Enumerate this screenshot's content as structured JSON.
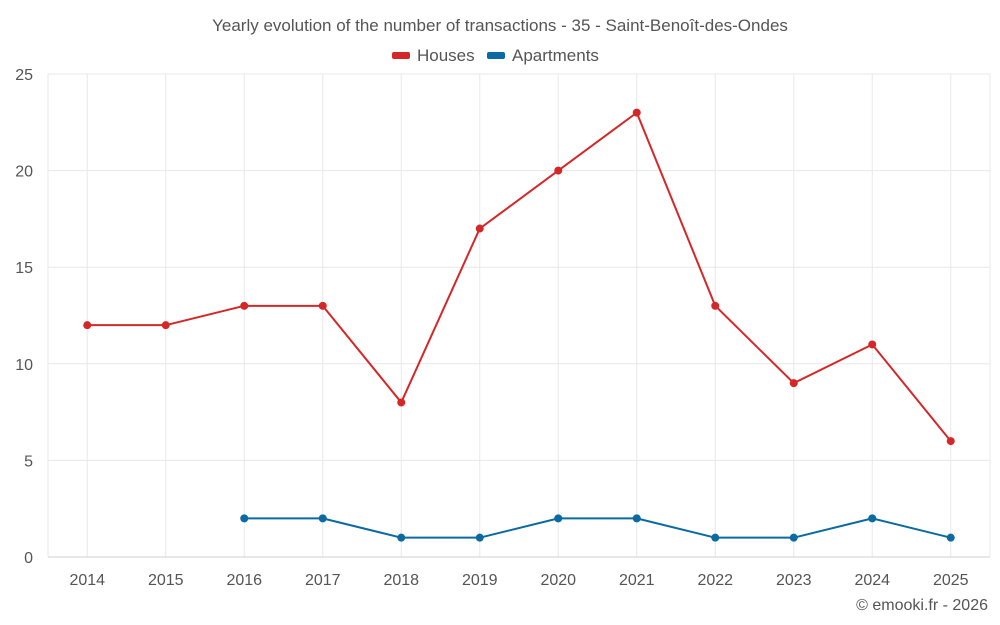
{
  "chart_data": {
    "type": "line",
    "title": "Yearly evolution of the number of transactions - 35 - Saint-Benoît-des-Ondes",
    "categories": [
      "2014",
      "2015",
      "2016",
      "2017",
      "2018",
      "2019",
      "2020",
      "2021",
      "2022",
      "2023",
      "2024",
      "2025"
    ],
    "ylim": [
      0,
      25
    ],
    "yticks": [
      0,
      5,
      10,
      15,
      20,
      25
    ],
    "grid": true,
    "legend_position": "top-center",
    "series": [
      {
        "name": "Houses",
        "color": "#d62728",
        "values": [
          12,
          12,
          13,
          13,
          8,
          17,
          20,
          23,
          13,
          9,
          11,
          6
        ]
      },
      {
        "name": "Apartments",
        "color": "#0a6aa1",
        "values": [
          null,
          null,
          2,
          2,
          1,
          1,
          2,
          2,
          1,
          1,
          2,
          1
        ]
      }
    ]
  },
  "credit": "© emooki.fr - 2026"
}
